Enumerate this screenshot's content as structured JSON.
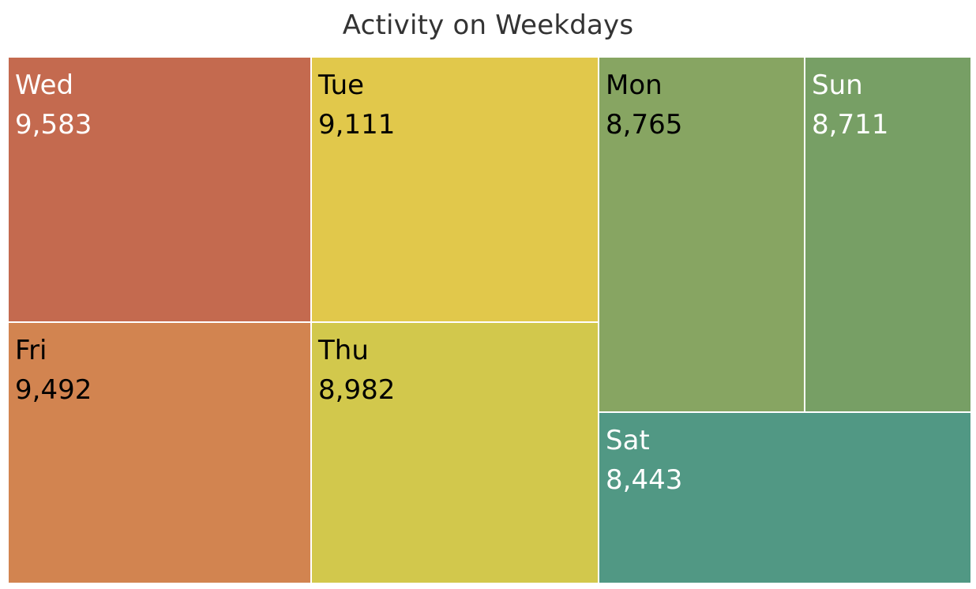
{
  "chart_data": {
    "type": "treemap",
    "title": "Activity on Weekdays",
    "labels_visible": true,
    "items": [
      {
        "label": "Wed",
        "value": "9,583",
        "number": 9583,
        "color": "#C46A4F",
        "text_color": "#ffffff"
      },
      {
        "label": "Tue",
        "value": "9,111",
        "number": 9111,
        "color": "#E1C84B",
        "text_color": "#000000"
      },
      {
        "label": "Mon",
        "value": "8,765",
        "number": 8765,
        "color": "#87A562",
        "text_color": "#000000"
      },
      {
        "label": "Sun",
        "value": "8,711",
        "number": 8711,
        "color": "#779F65",
        "text_color": "#ffffff"
      },
      {
        "label": "Fri",
        "value": "9,492",
        "number": 9492,
        "color": "#D28450",
        "text_color": "#000000"
      },
      {
        "label": "Thu",
        "value": "8,982",
        "number": 8982,
        "color": "#D2C84C",
        "text_color": "#000000"
      },
      {
        "label": "Sat",
        "value": "8,443",
        "number": 8443,
        "color": "#519884",
        "text_color": "#ffffff"
      }
    ]
  }
}
